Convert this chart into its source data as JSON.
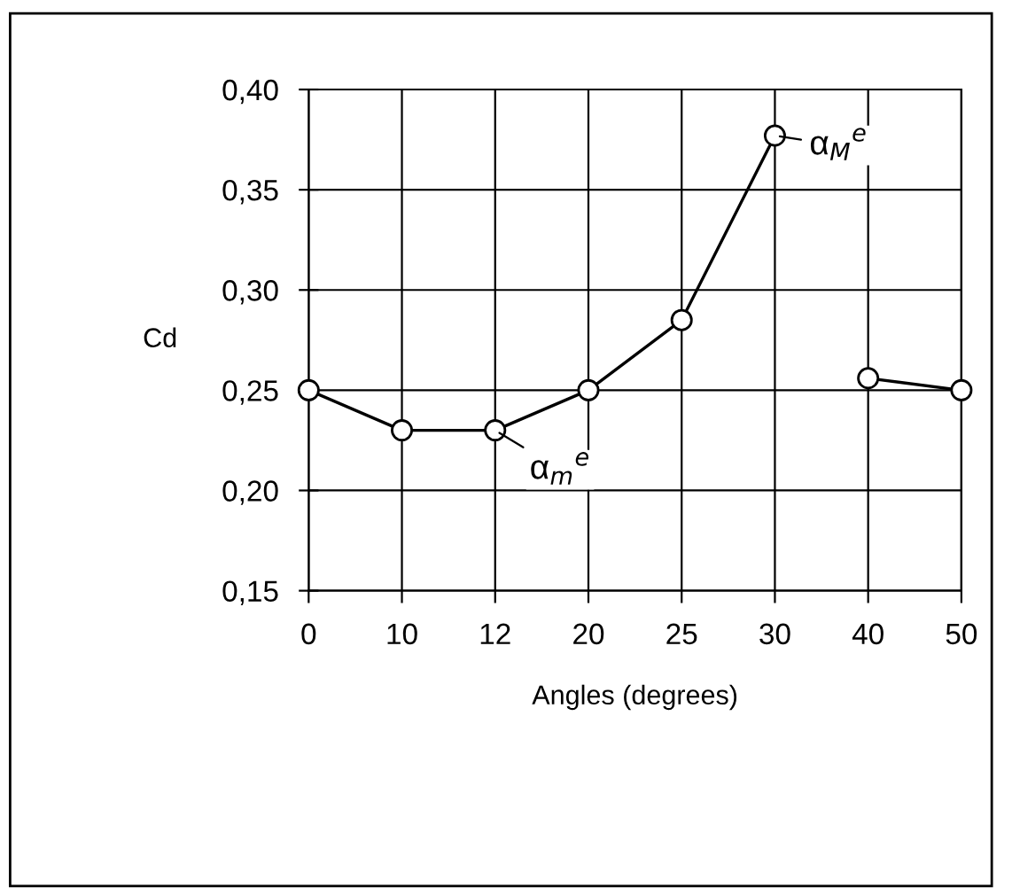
{
  "chart_data": {
    "type": "line",
    "xlabel": "Angles (degrees)",
    "ylabel": "Cd",
    "categories": [
      "0",
      "10",
      "12",
      "20",
      "25",
      "30",
      "40",
      "50"
    ],
    "series": [
      {
        "color": "#000000",
        "values": [
          0.25,
          0.23,
          0.23,
          0.25,
          0.285,
          0.377,
          null,
          null
        ]
      },
      {
        "color": "#000000",
        "values": [
          null,
          null,
          null,
          null,
          null,
          null,
          0.256,
          0.25
        ]
      }
    ],
    "ylim": [
      0.15,
      0.4
    ],
    "yticks": [
      {
        "value": 0.15,
        "label": "0,15"
      },
      {
        "value": 0.2,
        "label": "0,20"
      },
      {
        "value": 0.25,
        "label": "0,25"
      },
      {
        "value": 0.3,
        "label": "0,30"
      },
      {
        "value": 0.35,
        "label": "0,35"
      },
      {
        "value": 0.4,
        "label": "0,40"
      }
    ],
    "grid": true,
    "marker": "circle",
    "line_style": "solid",
    "annotations": [
      {
        "text": "α$_{m}$$^{e}$",
        "x": "12",
        "y": 0.23
      },
      {
        "text": "α$_{M}$$^{e}$",
        "x": "30",
        "y": 0.377
      }
    ]
  }
}
